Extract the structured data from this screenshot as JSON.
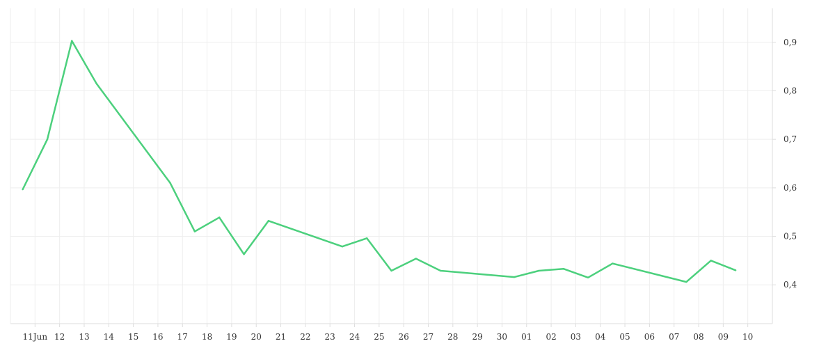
{
  "chart_data": {
    "type": "line",
    "title": "",
    "xlabel": "",
    "ylabel": "",
    "y_axis_position": "right",
    "grid": true,
    "ylim": [
      0.32,
      0.97
    ],
    "y_ticks": [
      0.4,
      0.5,
      0.6,
      0.7,
      0.8,
      0.9
    ],
    "y_tick_labels": [
      "0,4",
      "0,5",
      "0,6",
      "0,7",
      "0,8",
      "0,9"
    ],
    "x_ticks": [
      "2024-06-11",
      "2024-06-12",
      "2024-06-13",
      "2024-06-14",
      "2024-06-15",
      "2024-06-16",
      "2024-06-17",
      "2024-06-18",
      "2024-06-19",
      "2024-06-20",
      "2024-06-21",
      "2024-06-22",
      "2024-06-23",
      "2024-06-24",
      "2024-06-25",
      "2024-06-26",
      "2024-06-27",
      "2024-06-28",
      "2024-06-29",
      "2024-06-30",
      "2024-07-01",
      "2024-07-02",
      "2024-07-03",
      "2024-07-04",
      "2024-07-05",
      "2024-07-06",
      "2024-07-07",
      "2024-07-08",
      "2024-07-09",
      "2024-07-10"
    ],
    "x_tick_labels": [
      "11Jun",
      "12",
      "13",
      "14",
      "15",
      "16",
      "17",
      "18",
      "19",
      "20",
      "21",
      "22",
      "23",
      "24",
      "25",
      "26",
      "27",
      "28",
      "29",
      "30",
      "01",
      "02",
      "03",
      "04",
      "05",
      "06",
      "07",
      "08",
      "09",
      "10"
    ],
    "xlim": [
      "2024-06-10 00:00",
      "2024-07-11 00:00"
    ],
    "series": [
      {
        "color": "#4cd07d",
        "points": [
          {
            "x": "2024-06-10 12:00",
            "y": 0.597
          },
          {
            "x": "2024-06-11 12:00",
            "y": 0.7
          },
          {
            "x": "2024-06-12 12:00",
            "y": 0.903
          },
          {
            "x": "2024-06-13 12:00",
            "y": 0.815
          },
          {
            "x": "2024-06-16 12:00",
            "y": 0.61
          },
          {
            "x": "2024-06-17 12:00",
            "y": 0.51
          },
          {
            "x": "2024-06-18 12:00",
            "y": 0.539
          },
          {
            "x": "2024-06-19 12:00",
            "y": 0.463
          },
          {
            "x": "2024-06-20 12:00",
            "y": 0.532
          },
          {
            "x": "2024-06-23 12:00",
            "y": 0.479
          },
          {
            "x": "2024-06-24 12:00",
            "y": 0.496
          },
          {
            "x": "2024-06-25 12:00",
            "y": 0.429
          },
          {
            "x": "2024-06-26 12:00",
            "y": 0.454
          },
          {
            "x": "2024-06-27 12:00",
            "y": 0.429
          },
          {
            "x": "2024-06-30 12:00",
            "y": 0.416
          },
          {
            "x": "2024-07-01 12:00",
            "y": 0.429
          },
          {
            "x": "2024-07-02 12:00",
            "y": 0.433
          },
          {
            "x": "2024-07-03 12:00",
            "y": 0.415
          },
          {
            "x": "2024-07-04 12:00",
            "y": 0.444
          },
          {
            "x": "2024-07-07 12:00",
            "y": 0.406
          },
          {
            "x": "2024-07-08 12:00",
            "y": 0.45
          },
          {
            "x": "2024-07-09 12:00",
            "y": 0.43
          }
        ]
      }
    ]
  }
}
